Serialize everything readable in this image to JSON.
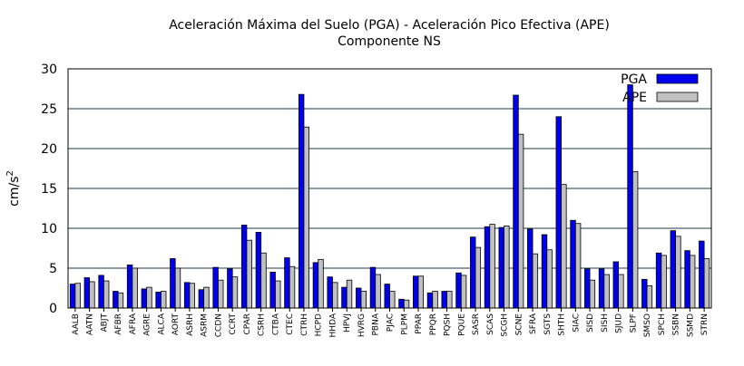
{
  "chart_data": {
    "type": "bar",
    "title": "Aceleración Máxima del Suelo (PGA) -  Aceleración Pico Efectiva (APE)",
    "subtitle": "Componente NS",
    "xlabel": "",
    "ylabel": "cm/s",
    "ylabel_superscript": "2",
    "ylim": [
      0,
      30
    ],
    "yticks": [
      0,
      5,
      10,
      15,
      20,
      25,
      30
    ],
    "grid": true,
    "legend_position": "top-right",
    "categories": [
      "AALB",
      "AATN",
      "ABJT",
      "AFBR",
      "AFRA",
      "AGRE",
      "ALCA",
      "AORT",
      "ASRH",
      "ASRM",
      "CCDN",
      "CCRT",
      "CPAR",
      "CSRH",
      "CTBA",
      "CTEC",
      "CTRH",
      "HCPD",
      "HHDA",
      "HPVJ",
      "HVRG",
      "PBNA",
      "PJAC",
      "PLPM",
      "PPAR",
      "PPQR",
      "PQSH",
      "PQUE",
      "SASR",
      "SCAS",
      "SCGH",
      "SCNE",
      "SFRA",
      "SGTS",
      "SHTH",
      "SIAC",
      "SISD",
      "SISH",
      "SJUD",
      "SLPF",
      "SMSO",
      "SPCH",
      "SSBN",
      "SSMD",
      "STRN"
    ],
    "series": [
      {
        "name": "PGA",
        "color": "#0000ee",
        "values": [
          3.0,
          3.8,
          4.1,
          2.1,
          5.4,
          2.4,
          2.0,
          6.2,
          3.2,
          2.3,
          5.1,
          4.9,
          10.4,
          9.5,
          4.5,
          6.3,
          26.8,
          5.7,
          3.9,
          2.6,
          2.5,
          5.1,
          3.0,
          1.1,
          4.0,
          1.9,
          2.1,
          4.4,
          8.9,
          10.2,
          10.1,
          26.7,
          9.9,
          9.2,
          24.0,
          11.0,
          4.9,
          4.9,
          5.8,
          28.0,
          3.6,
          6.9,
          9.7,
          7.2,
          8.4
        ]
      },
      {
        "name": "APE",
        "color": "#c0c0c0",
        "values": [
          3.1,
          3.3,
          3.4,
          1.9,
          5.0,
          2.6,
          2.1,
          5.0,
          3.1,
          2.6,
          3.5,
          3.9,
          8.5,
          6.9,
          3.4,
          5.2,
          22.7,
          6.1,
          3.2,
          3.5,
          2.1,
          4.2,
          2.1,
          1.0,
          4.0,
          2.1,
          2.1,
          4.1,
          7.6,
          10.5,
          10.3,
          21.8,
          6.8,
          7.3,
          15.5,
          10.6,
          3.5,
          4.2,
          4.2,
          17.1,
          2.8,
          6.6,
          9.0,
          6.6,
          6.2
        ]
      }
    ]
  }
}
